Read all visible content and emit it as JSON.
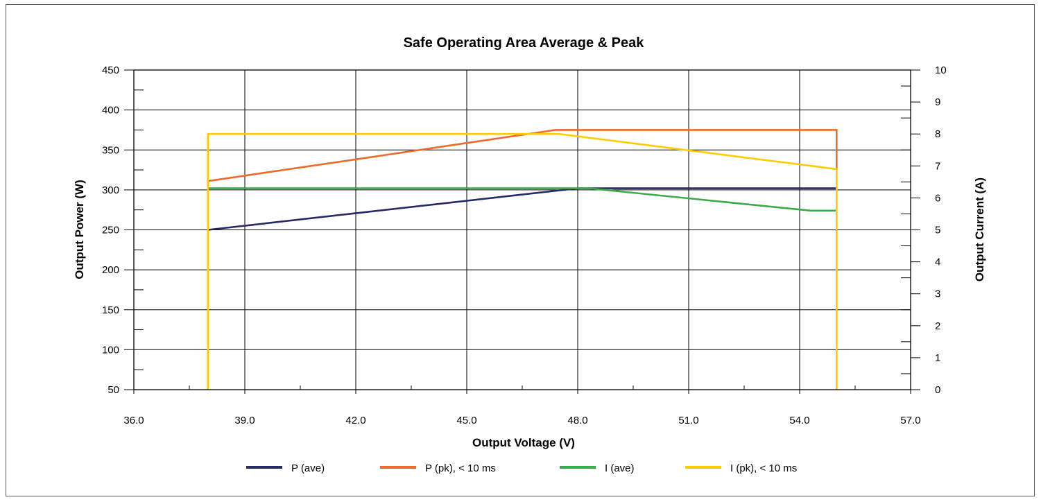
{
  "chart_data": {
    "type": "line",
    "title": "Safe Operating Area Average & Peak",
    "xlabel": "Output Voltage (V)",
    "ylabel": "Output Power (W)",
    "y2label": "Output Current (A)",
    "xlim": [
      36.0,
      57.0
    ],
    "ylim": [
      50,
      450
    ],
    "y2lim": [
      0,
      10
    ],
    "x_ticks": [
      "36.0",
      "39.0",
      "42.0",
      "45.0",
      "48.0",
      "51.0",
      "54.0",
      "57.0"
    ],
    "x_tick_values": [
      36,
      39,
      42,
      45,
      48,
      51,
      54,
      57
    ],
    "y_ticks": [
      "50",
      "100",
      "150",
      "200",
      "250",
      "300",
      "350",
      "400",
      "450"
    ],
    "y_tick_values": [
      50,
      100,
      150,
      200,
      250,
      300,
      350,
      400,
      450
    ],
    "y2_ticks": [
      "0",
      "1",
      "2",
      "3",
      "4",
      "5",
      "6",
      "7",
      "8",
      "9",
      "10"
    ],
    "y2_tick_values": [
      0,
      1,
      2,
      3,
      4,
      5,
      6,
      7,
      8,
      9,
      10
    ],
    "grid": true,
    "legend_position": "bottom",
    "series": [
      {
        "name": "P (ave)",
        "axis": "left",
        "color": "#262a66",
        "x": [
          38.0,
          48.0,
          55.0
        ],
        "y": [
          250,
          302,
          302
        ]
      },
      {
        "name": "P (pk), < 10 ms",
        "axis": "left",
        "color": "#ee6a2a",
        "x": [
          38.0,
          47.4,
          55.0,
          55.0
        ],
        "y": [
          311,
          375,
          375,
          325
        ]
      },
      {
        "name": "I (ave)",
        "axis": "right",
        "color": "#3aab4a",
        "x": [
          38.0,
          48.3,
          54.3,
          55.0
        ],
        "y": [
          6.3,
          6.3,
          5.6,
          5.6
        ]
      },
      {
        "name": "I (pk), < 10 ms",
        "axis": "right",
        "color": "#ffcc00",
        "x": [
          38.0,
          38.0,
          47.5,
          55.0,
          55.0
        ],
        "y": [
          0,
          8.0,
          8.0,
          6.9,
          0
        ]
      }
    ]
  }
}
